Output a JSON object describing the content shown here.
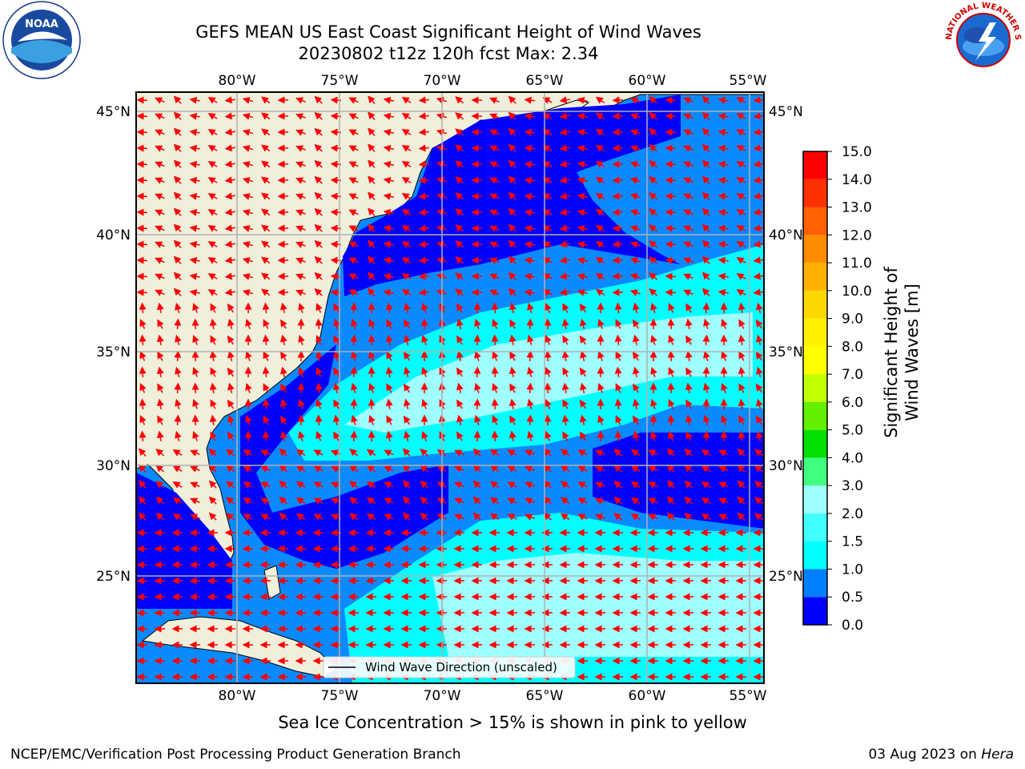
{
  "header": {
    "title_line1": "GEFS MEAN US East Coast Significant Height of Wind Waves",
    "title_line2": "20230802 t12z 120h fcst    Max: 2.34"
  },
  "logos": {
    "left": "noaa-logo",
    "left_text": "NOAA",
    "right": "nws-logo",
    "right_text": "NATIONAL WEATHER SERVICE"
  },
  "map": {
    "lon_labels": [
      "80°W",
      "75°W",
      "70°W",
      "65°W",
      "60°W",
      "55°W"
    ],
    "lat_labels": [
      "45°N",
      "40°N",
      "35°N",
      "30°N",
      "25°N"
    ],
    "legend_label": "Wind Wave Direction (unscaled)",
    "land_color": "#efefdc",
    "arrow_color": "#ff0000"
  },
  "colorbar": {
    "title": "Significant Height of Wind Waves [m]",
    "ticks": [
      "0.0",
      "0.5",
      "1.0",
      "1.5",
      "2.0",
      "3.0",
      "4.0",
      "5.0",
      "6.0",
      "7.0",
      "8.0",
      "9.0",
      "10.0",
      "11.0",
      "12.0",
      "13.0",
      "14.0",
      "15.0"
    ],
    "colors": [
      "#0000ff",
      "#0080ff",
      "#00ffff",
      "#40ffff",
      "#a0ffff",
      "#40ff80",
      "#00e000",
      "#60f000",
      "#c0ff00",
      "#ffff00",
      "#fff000",
      "#ffd700",
      "#ffb000",
      "#ff8c00",
      "#ff6000",
      "#ff3000",
      "#ff0000"
    ]
  },
  "chart_data": {
    "type": "heatmap",
    "title": "GEFS MEAN US East Coast Significant Height of Wind Waves",
    "subtitle": "20230802 t12z 120h fcst    Max: 2.34",
    "xlabel": "",
    "ylabel": "",
    "x_ticks": [
      "80°W",
      "75°W",
      "70°W",
      "65°W",
      "60°W",
      "55°W"
    ],
    "y_ticks": [
      "45°N",
      "40°N",
      "35°N",
      "30°N",
      "25°N"
    ],
    "max_value": 2.34,
    "colorbar_range": [
      0,
      15
    ],
    "grid": true,
    "legend": "bottom-center"
  },
  "notes": {
    "sea_ice": "Sea Ice Concentration > 15% is shown in pink to yellow"
  },
  "footer": {
    "left": "NCEP/EMC/Verification Post Processing Product Generation Branch",
    "right_date": "03 Aug 2023 on",
    "right_host": "Hera"
  }
}
